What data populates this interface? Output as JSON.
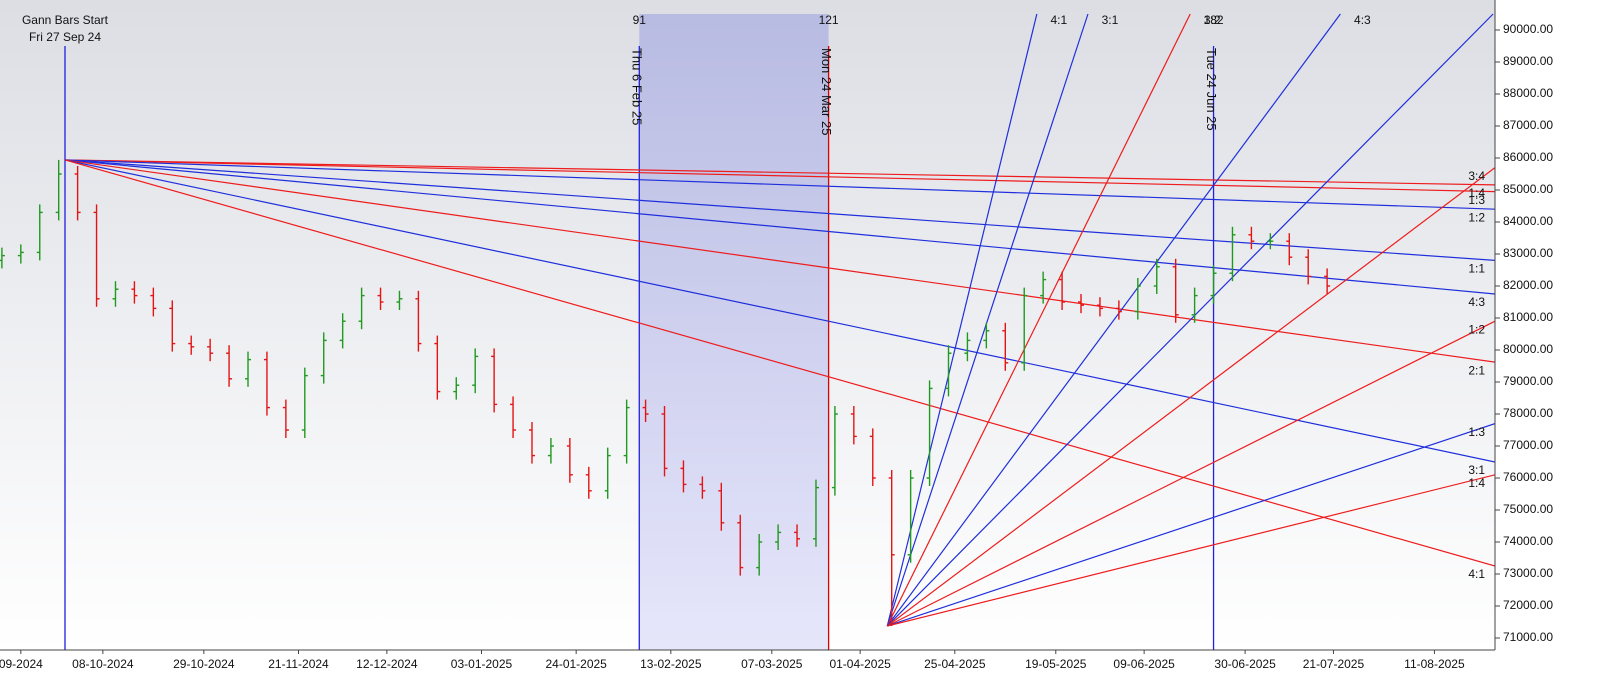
{
  "chart_data": {
    "type": "ohlc",
    "xlim": [
      -10.3,
      226.6
    ],
    "ylim": [
      70625,
      90500
    ],
    "xticks": [
      {
        "value": -7,
        "label": "09-2024"
      },
      {
        "value": 6,
        "label": "08-10-2024"
      },
      {
        "value": 22,
        "label": "29-10-2024"
      },
      {
        "value": 37,
        "label": "21-11-2024"
      },
      {
        "value": 51,
        "label": "12-12-2024"
      },
      {
        "value": 66,
        "label": "03-01-2025"
      },
      {
        "value": 81,
        "label": "24-01-2025"
      },
      {
        "value": 96,
        "label": "13-02-2025"
      },
      {
        "value": 112,
        "label": "07-03-2025"
      },
      {
        "value": 126,
        "label": "01-04-2025"
      },
      {
        "value": 141,
        "label": "25-04-2025"
      },
      {
        "value": 157,
        "label": "19-05-2025"
      },
      {
        "value": 171,
        "label": "09-06-2025"
      },
      {
        "value": 187,
        "label": "30-06-2025"
      },
      {
        "value": 201,
        "label": "21-07-2025"
      },
      {
        "value": 217,
        "label": "11-08-2025"
      }
    ],
    "yticks": [
      {
        "value": 71000,
        "label": "71000.00"
      },
      {
        "value": 72000,
        "label": "72000.00"
      },
      {
        "value": 73000,
        "label": "73000.00"
      },
      {
        "value": 74000,
        "label": "74000.00"
      },
      {
        "value": 75000,
        "label": "75000.00"
      },
      {
        "value": 76000,
        "label": "76000.00"
      },
      {
        "value": 77000,
        "label": "77000.00"
      },
      {
        "value": 78000,
        "label": "78000.00"
      },
      {
        "value": 79000,
        "label": "79000.00"
      },
      {
        "value": 80000,
        "label": "80000.00"
      },
      {
        "value": 81000,
        "label": "81000.00"
      },
      {
        "value": 82000,
        "label": "82000.00"
      },
      {
        "value": 83000,
        "label": "83000.00"
      },
      {
        "value": 84000,
        "label": "84000.00"
      },
      {
        "value": 85000,
        "label": "85000.00"
      },
      {
        "value": 86000,
        "label": "86000.00"
      },
      {
        "value": 87000,
        "label": "87000.00"
      },
      {
        "value": 88000,
        "label": "88000.00"
      },
      {
        "value": 89000,
        "label": "89000.00"
      },
      {
        "value": 90000,
        "label": "90000.00"
      }
    ],
    "up_color": "#1e9a1e",
    "down_color": "#e41414",
    "x": [
      -10,
      -7,
      -4,
      -1,
      2,
      5,
      8,
      11,
      14,
      17,
      20,
      23,
      26,
      29,
      32,
      35,
      38,
      41,
      44,
      47,
      50,
      53,
      56,
      59,
      62,
      65,
      68,
      71,
      74,
      77,
      80,
      83,
      86,
      89,
      92,
      95,
      98,
      101,
      104,
      107,
      110,
      113,
      116,
      119,
      122,
      125,
      128,
      131,
      134,
      137,
      140,
      143,
      146,
      149,
      152,
      155,
      158,
      161,
      164,
      167,
      170,
      173,
      176,
      179,
      182,
      185,
      188,
      191,
      194,
      197,
      200
    ],
    "open": [
      82800,
      82950,
      83050,
      84300,
      85500,
      84300,
      81600,
      81900,
      81700,
      81300,
      80200,
      80100,
      79900,
      79100,
      79700,
      78200,
      77500,
      79200,
      80300,
      80900,
      81700,
      81500,
      81600,
      80200,
      78700,
      78900,
      79800,
      78300,
      77500,
      76700,
      77000,
      76100,
      75600,
      76700,
      78200,
      78000,
      76300,
      75800,
      75600,
      74600,
      73200,
      74000,
      74300,
      74100,
      75700,
      78000,
      77300,
      76000,
      73600,
      76000,
      78800,
      79900,
      80300,
      80600,
      79600,
      81700,
      82200,
      81500,
      81400,
      81300,
      81200,
      82000,
      82600,
      81100,
      81700,
      82400,
      83600,
      83400,
      83400,
      82900,
      82300
    ],
    "high": [
      83200,
      83300,
      84550,
      85940,
      85750,
      84550,
      82150,
      82150,
      81950,
      81550,
      80450,
      80350,
      80150,
      79950,
      79950,
      78450,
      79450,
      80550,
      81150,
      81950,
      81950,
      81850,
      81850,
      80450,
      79150,
      80050,
      80050,
      78550,
      77750,
      77250,
      77250,
      76350,
      76950,
      78450,
      78450,
      78250,
      76550,
      76050,
      75850,
      74850,
      74250,
      74550,
      74550,
      75950,
      78250,
      78250,
      77550,
      76250,
      76250,
      79050,
      80150,
      80550,
      80850,
      80850,
      81950,
      82450,
      82450,
      81750,
      81650,
      81550,
      82250,
      82850,
      82850,
      81950,
      82650,
      83850,
      83850,
      83650,
      83650,
      83150,
      82550
    ],
    "low": [
      82550,
      82700,
      82800,
      84050,
      84050,
      81350,
      81350,
      81450,
      81050,
      79950,
      79850,
      79650,
      78850,
      78850,
      77950,
      77250,
      77250,
      78950,
      80050,
      80650,
      81250,
      81250,
      79950,
      78450,
      78450,
      78650,
      78050,
      77250,
      76450,
      76450,
      75850,
      75350,
      75350,
      76450,
      77750,
      76050,
      75550,
      75350,
      74350,
      72950,
      72950,
      73750,
      73850,
      73850,
      75450,
      77050,
      75750,
      71375,
      73350,
      75750,
      78550,
      79650,
      80050,
      79350,
      79350,
      81450,
      81250,
      81150,
      81050,
      80950,
      80950,
      81750,
      80850,
      80850,
      81450,
      82150,
      83150,
      83150,
      82650,
      82050,
      81750
    ],
    "close": [
      82950,
      83050,
      84300,
      85500,
      84300,
      81600,
      81900,
      81700,
      81300,
      80200,
      80100,
      79900,
      79100,
      79700,
      78200,
      77500,
      79200,
      80300,
      80900,
      81700,
      81500,
      81600,
      80200,
      78700,
      78900,
      79800,
      78300,
      77500,
      76700,
      77000,
      76100,
      75600,
      76700,
      78200,
      78000,
      76300,
      75800,
      75600,
      74600,
      73200,
      74000,
      74300,
      74100,
      75700,
      78000,
      77300,
      76000,
      73600,
      76000,
      78800,
      79900,
      80300,
      80600,
      79600,
      81700,
      82200,
      81500,
      81400,
      81300,
      81200,
      82000,
      82600,
      81100,
      81700,
      82400,
      83600,
      83400,
      83400,
      82900,
      82300,
      82000
    ],
    "shaded": [
      91,
      121
    ],
    "markers": [
      {
        "x": 0,
        "color": "#2020e0",
        "title": "Gann Bars Start",
        "date": "Fri 27 Sep 24"
      },
      {
        "x": 91,
        "color": "#2020e0",
        "date": "Thu 6 Feb 25"
      },
      {
        "x": 121,
        "color": "#e00000",
        "date": "Mon 24 Mar 25"
      },
      {
        "x": 182,
        "color": "#2020e0",
        "date": "Tue 24 Jun 25"
      }
    ],
    "fans": [
      {
        "origin": [
          0,
          85940
        ],
        "lines": [
          {
            "color": "#ee1c1c",
            "end": [
              226.6,
              85160
            ],
            "label": "1:4"
          },
          {
            "color": "#ee1c1c",
            "end": [
              226.6,
              84950
            ],
            "label": "1:3"
          },
          {
            "color": "#1f2fdc",
            "end": [
              226.6,
              84400
            ],
            "label": "1:2"
          },
          {
            "color": "#1f2fdc",
            "end": [
              226.6,
              82800
            ],
            "label": "1:1"
          },
          {
            "color": "#1f2fdc",
            "end": [
              226.6,
              81750
            ],
            "label": "4:3"
          },
          {
            "color": "#ee1c1c",
            "end": [
              226.6,
              79620
            ],
            "label": "2:1"
          },
          {
            "color": "#1f2fdc",
            "end": [
              226.6,
              76500
            ],
            "label": "3:1"
          },
          {
            "color": "#ee1c1c",
            "end": [
              226.6,
              73250
            ],
            "label": "4:1"
          }
        ]
      },
      {
        "origin": [
          130.3,
          71375
        ],
        "lines": [
          {
            "color": "#1f2fdc",
            "end": [
              154,
              90500
            ],
            "label": "4:1"
          },
          {
            "color": "#1f2fdc",
            "end": [
              162.1,
              90500
            ],
            "label": "3:1"
          },
          {
            "color": "#ee1c1c",
            "end": [
              178.3,
              90500
            ],
            "label": "3:2"
          },
          {
            "color": "#1f2fdc",
            "end": [
              202.1,
              90500
            ],
            "label": "4:3"
          },
          {
            "color": "#1f2fdc",
            "end": [
              226.3,
              90500
            ]
          },
          {
            "color": "#ee1c1c",
            "end": [
              226.6,
              85700
            ],
            "label": "3:4"
          },
          {
            "color": "#ee1c1c",
            "end": [
              226.6,
              80900
            ],
            "label": "1:2"
          },
          {
            "color": "#1f2fdc",
            "end": [
              226.6,
              77700
            ],
            "label": "1:3"
          },
          {
            "color": "#ee1c1c",
            "end": [
              226.6,
              76100
            ],
            "label": "1:4"
          }
        ]
      }
    ]
  }
}
